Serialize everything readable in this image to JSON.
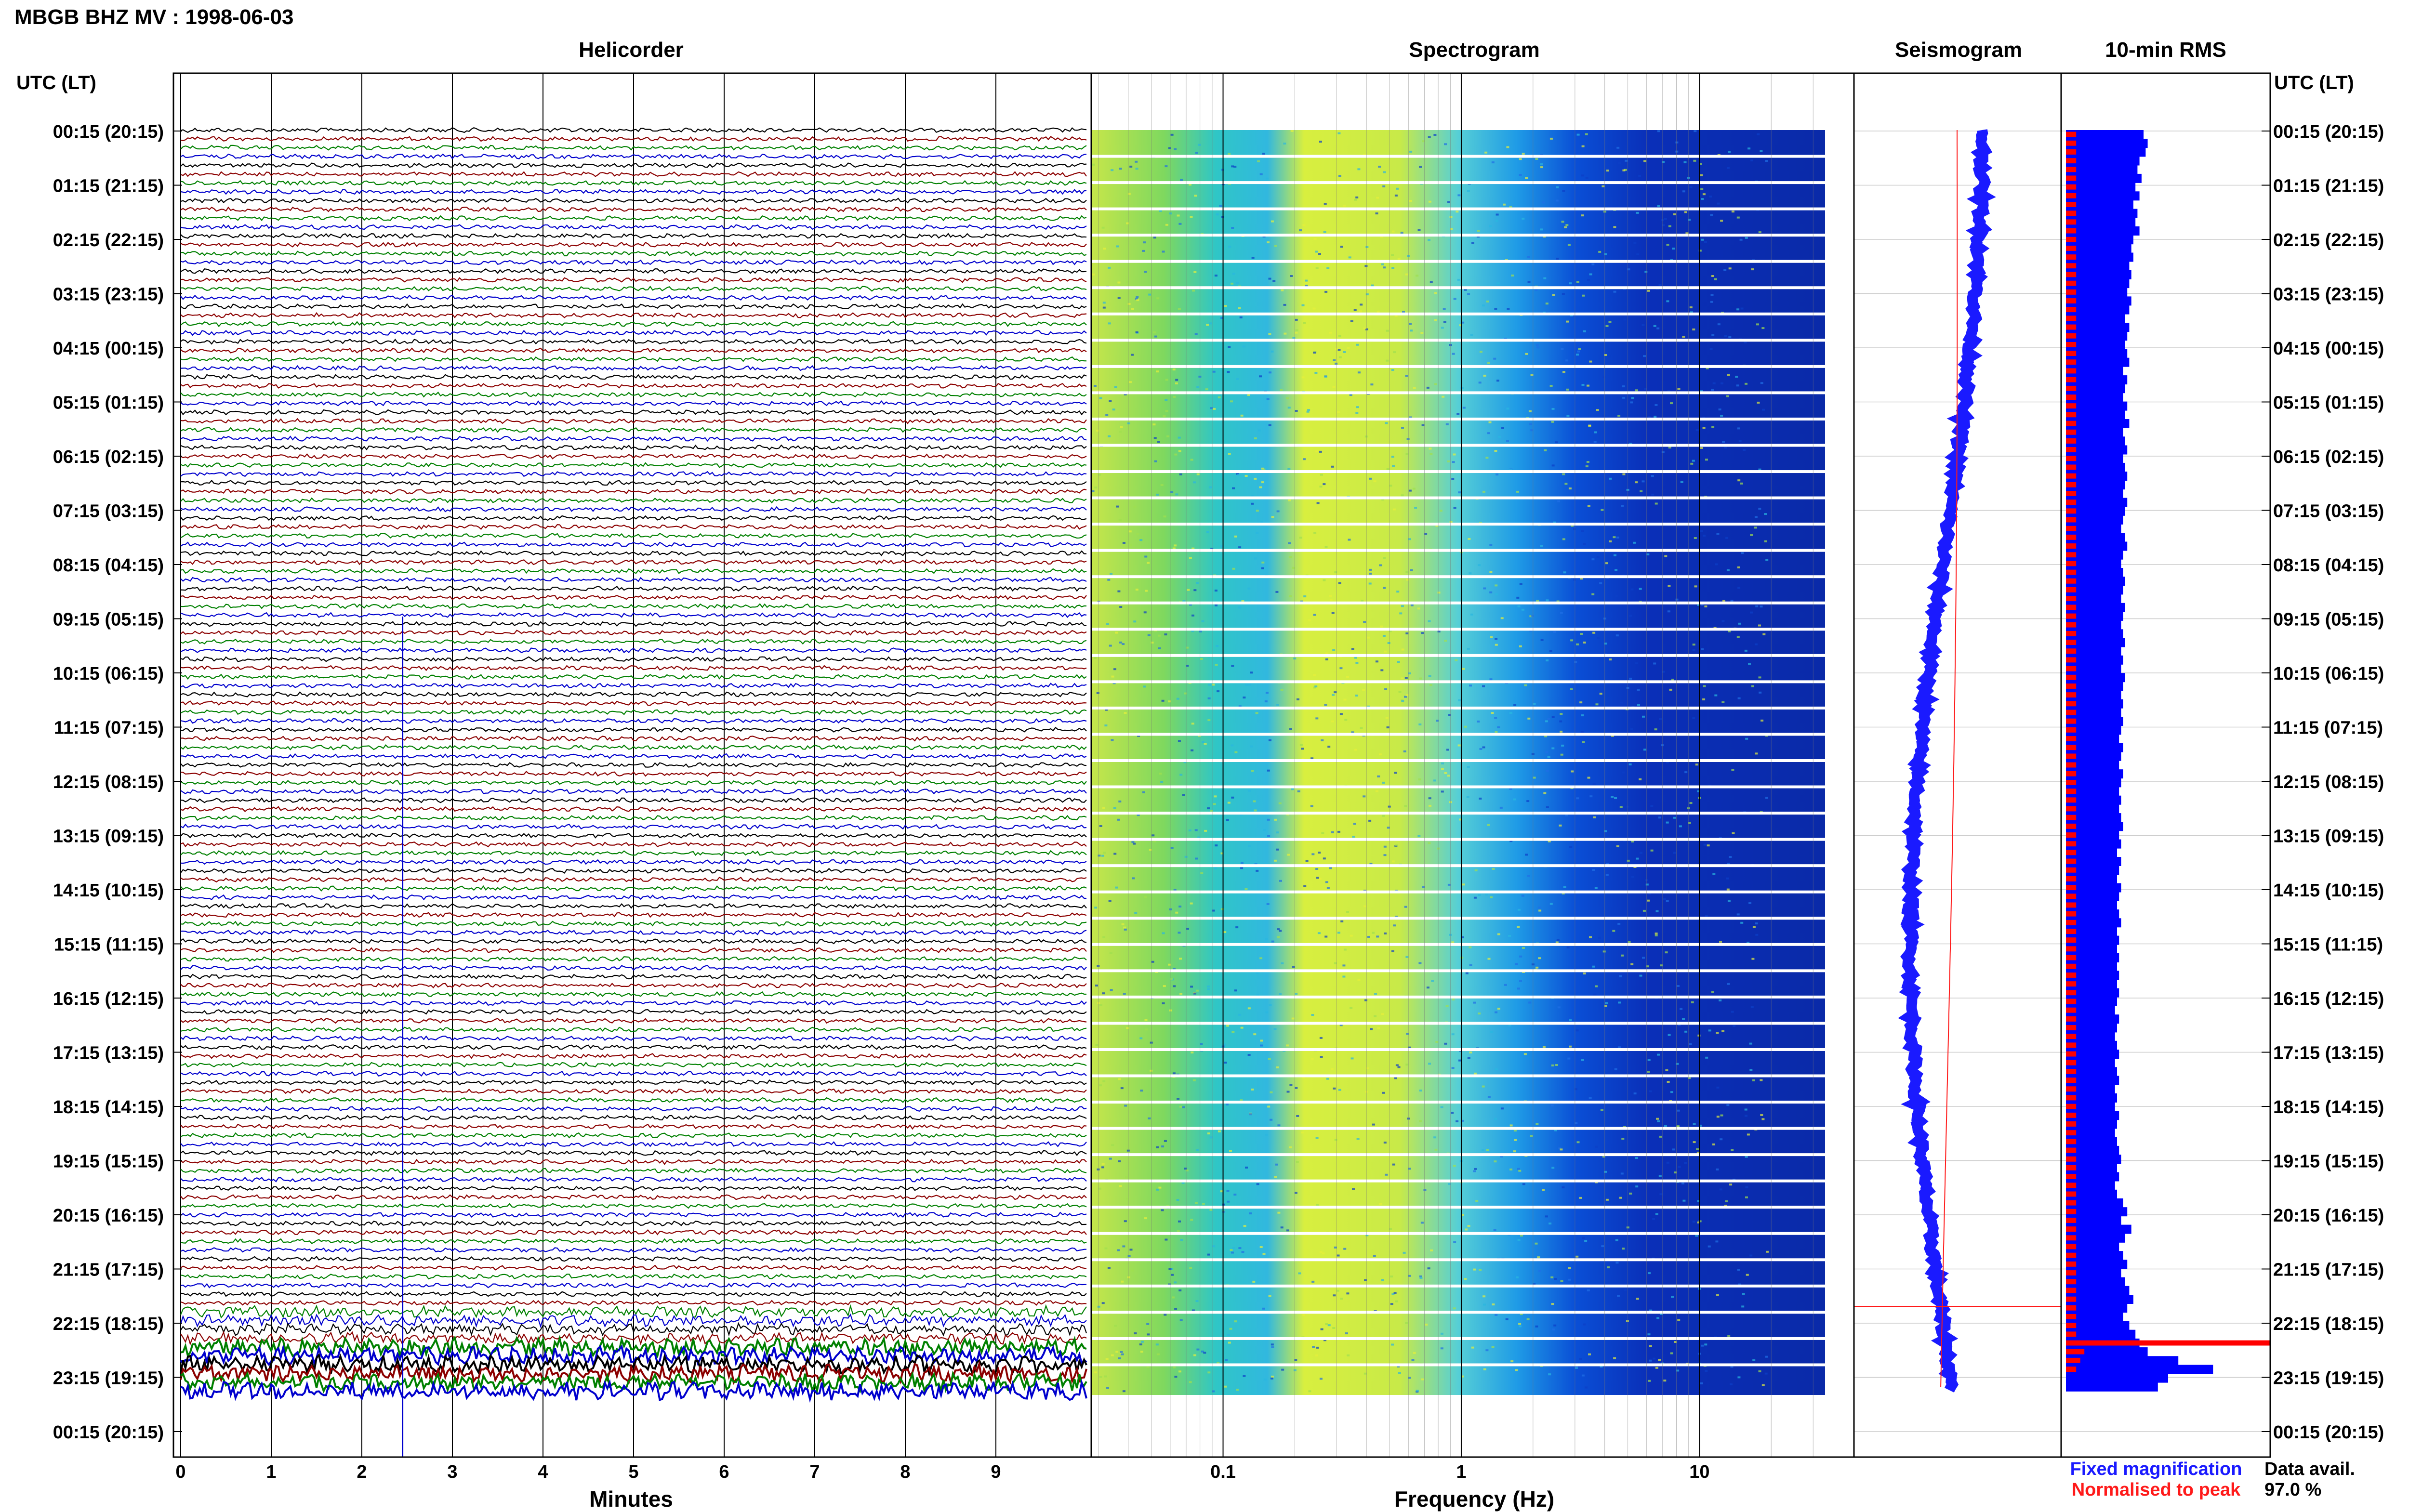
{
  "station_title": "MBGB BHZ MV : 1998-06-03",
  "utc_header_left": "UTC (LT)",
  "utc_header_right": "UTC (LT)",
  "panels": {
    "helicorder": "Helicorder",
    "spectrogram": "Spectrogram",
    "seismogram": "Seismogram",
    "rms": "10-min RMS"
  },
  "x_labels": {
    "helicorder": "Minutes",
    "spectrogram": "Frequency (Hz)"
  },
  "legend": {
    "fixed": "Fixed magnification",
    "normalised": "Normalised to peak",
    "fixed_color": "#1a1aff",
    "normalised_color": "#ff1a1a"
  },
  "data_availability": {
    "label": "Data avail.",
    "value": "97.0 %"
  },
  "colors": {
    "trace_cycle": [
      "#000000",
      "#8b0000",
      "#008000",
      "#0000cd"
    ],
    "rms_fixed": "#0000ff",
    "rms_normalised": "#ff0000"
  },
  "chart_data": [
    {
      "type": "line",
      "panel": "helicorder",
      "xlabel": "Minutes",
      "x_ticks": [
        0,
        1,
        2,
        3,
        4,
        5,
        6,
        7,
        8,
        9
      ],
      "xlim": [
        0,
        10
      ],
      "y_ticks": [
        "00:15 (20:15)",
        "01:15 (21:15)",
        "02:15 (22:15)",
        "03:15 (23:15)",
        "04:15 (00:15)",
        "05:15 (01:15)",
        "06:15 (02:15)",
        "07:15 (03:15)",
        "08:15 (04:15)",
        "09:15 (05:15)",
        "10:15 (06:15)",
        "11:15 (07:15)",
        "12:15 (08:15)",
        "13:15 (09:15)",
        "14:15 (10:15)",
        "15:15 (11:15)",
        "16:15 (12:15)",
        "17:15 (13:15)",
        "18:15 (14:15)",
        "19:15 (15:15)",
        "20:15 (16:15)",
        "21:15 (17:15)",
        "22:15 (18:15)",
        "23:15 (19:15)",
        "00:15 (20:15)"
      ],
      "trace_count": 144
    },
    {
      "type": "heatmap",
      "panel": "spectrogram",
      "xlabel": "Frequency (Hz)",
      "x_scale": "log",
      "x_ticks": [
        "0.1",
        "1",
        "10"
      ],
      "xlim": [
        0.03,
        50
      ]
    },
    {
      "type": "line",
      "panel": "seismogram",
      "series": [
        {
          "name": "Fixed magnification",
          "color": "#1a1aff"
        },
        {
          "name": "Normalised to peak",
          "color": "#ff1a1a"
        }
      ]
    },
    {
      "type": "bar",
      "panel": "10-min RMS",
      "orientation": "horizontal",
      "series": [
        {
          "name": "Fixed magnification",
          "values": [
            0.38,
            0.4,
            0.39,
            0.36,
            0.35,
            0.37,
            0.34,
            0.36,
            0.33,
            0.35,
            0.34,
            0.36,
            0.33,
            0.32,
            0.33,
            0.31,
            0.32,
            0.31,
            0.3,
            0.32,
            0.31,
            0.29,
            0.31,
            0.3,
            0.29,
            0.3,
            0.31,
            0.28,
            0.3,
            0.29,
            0.28,
            0.3,
            0.29,
            0.31,
            0.28,
            0.29,
            0.3,
            0.28,
            0.29,
            0.3,
            0.29,
            0.28,
            0.3,
            0.29,
            0.28,
            0.27,
            0.29,
            0.3,
            0.28,
            0.27,
            0.28,
            0.29,
            0.28,
            0.27,
            0.29,
            0.28,
            0.27,
            0.28,
            0.29,
            0.27,
            0.28,
            0.27,
            0.29,
            0.28,
            0.27,
            0.28,
            0.27,
            0.28,
            0.27,
            0.26,
            0.28,
            0.27,
            0.26,
            0.28,
            0.27,
            0.26,
            0.27,
            0.26,
            0.27,
            0.28,
            0.26,
            0.27,
            0.25,
            0.27,
            0.26,
            0.25,
            0.27,
            0.26,
            0.25,
            0.26,
            0.27,
            0.25,
            0.26,
            0.25,
            0.26,
            0.25,
            0.26,
            0.25,
            0.26,
            0.25,
            0.24,
            0.26,
            0.25,
            0.24,
            0.25,
            0.26,
            0.24,
            0.25,
            0.26,
            0.24,
            0.25,
            0.24,
            0.26,
            0.25,
            0.24,
            0.25,
            0.26,
            0.27,
            0.25,
            0.26,
            0.24,
            0.25,
            0.28,
            0.3,
            0.27,
            0.32,
            0.29,
            0.26,
            0.28,
            0.3,
            0.27,
            0.29,
            0.31,
            0.33,
            0.3,
            0.28,
            0.31,
            0.34,
            0.36,
            0.4,
            0.55,
            0.72,
            0.5,
            0.45
          ]
        },
        {
          "name": "Normalised to peak",
          "values": [
            0.05,
            0.05,
            0.05,
            0.05,
            0.05,
            0.05,
            0.05,
            0.05,
            0.05,
            0.05,
            0.05,
            0.05,
            0.05,
            0.05,
            0.05,
            0.05,
            0.05,
            0.05,
            0.05,
            0.05,
            0.05,
            0.05,
            0.05,
            0.05,
            0.05,
            0.05,
            0.05,
            0.05,
            0.05,
            0.05,
            0.05,
            0.05,
            0.05,
            0.05,
            0.05,
            0.05,
            0.05,
            0.05,
            0.05,
            0.05,
            0.05,
            0.05,
            0.05,
            0.05,
            0.05,
            0.05,
            0.05,
            0.05,
            0.05,
            0.05,
            0.05,
            0.05,
            0.05,
            0.05,
            0.05,
            0.05,
            0.05,
            0.05,
            0.05,
            0.05,
            0.05,
            0.05,
            0.05,
            0.05,
            0.05,
            0.05,
            0.05,
            0.05,
            0.05,
            0.05,
            0.05,
            0.05,
            0.05,
            0.05,
            0.05,
            0.05,
            0.05,
            0.05,
            0.05,
            0.05,
            0.05,
            0.05,
            0.05,
            0.05,
            0.05,
            0.05,
            0.05,
            0.05,
            0.05,
            0.05,
            0.05,
            0.05,
            0.05,
            0.05,
            0.05,
            0.05,
            0.05,
            0.05,
            0.05,
            0.05,
            0.05,
            0.05,
            0.05,
            0.05,
            0.05,
            0.05,
            0.05,
            0.05,
            0.05,
            0.05,
            0.05,
            0.05,
            0.05,
            0.05,
            0.05,
            0.05,
            0.05,
            0.05,
            0.05,
            0.05,
            0.05,
            0.05,
            0.05,
            0.05,
            0.05,
            0.05,
            0.05,
            0.05,
            0.05,
            0.05,
            0.05,
            0.05,
            0.05,
            0.05,
            0.05,
            0.05,
            0.05,
            0.05,
            1.0,
            0.09,
            0.07,
            0.05
          ]
        }
      ]
    }
  ]
}
